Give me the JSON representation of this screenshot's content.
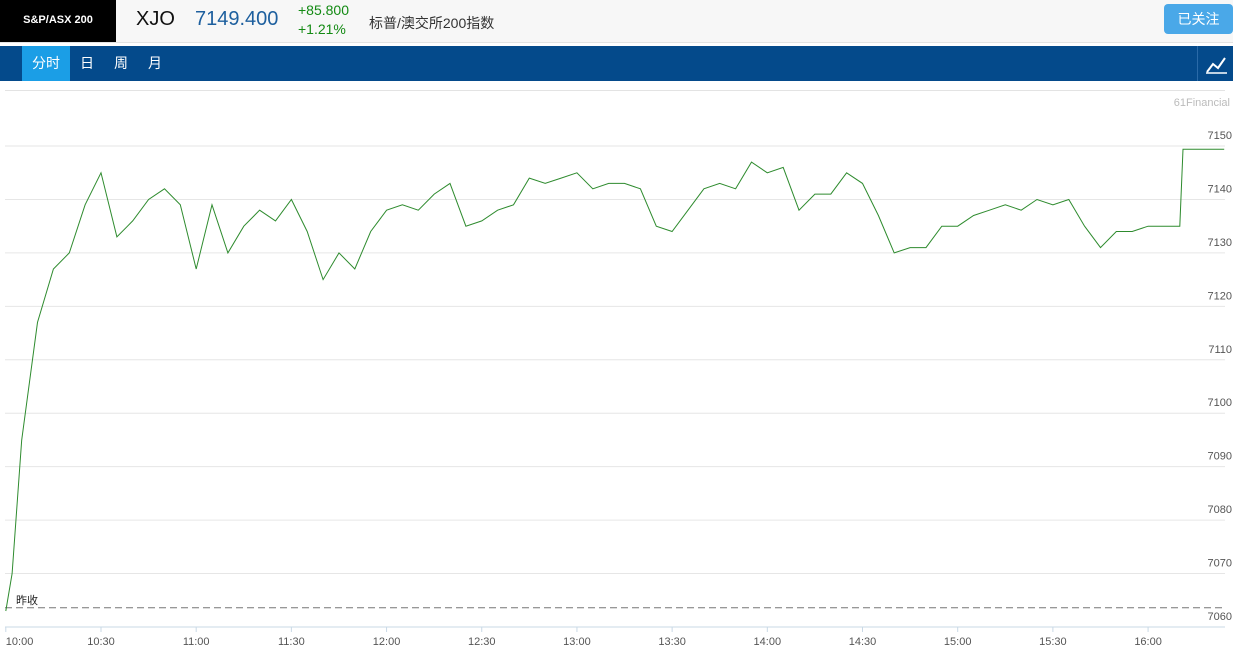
{
  "header": {
    "badge": "S&P/ASX 200",
    "symbol": "XJO",
    "price": "7149.400",
    "change": "+85.800",
    "change_pct": "+1.21%",
    "name": "标普/澳交所200指数",
    "follow_button": "已关注"
  },
  "tabs": [
    "分时",
    "日",
    "周",
    "月"
  ],
  "watermark": "61Financial",
  "chart_data": {
    "type": "line",
    "color": "#2e8b2e",
    "x": [
      "10:00",
      "10:02",
      "10:05",
      "10:10",
      "10:15",
      "10:20",
      "10:25",
      "10:30",
      "10:35",
      "10:40",
      "10:45",
      "10:50",
      "10:55",
      "11:00",
      "11:05",
      "11:10",
      "11:15",
      "11:20",
      "11:25",
      "11:30",
      "11:35",
      "11:40",
      "11:45",
      "11:50",
      "11:55",
      "12:00",
      "12:05",
      "12:10",
      "12:15",
      "12:20",
      "12:25",
      "12:30",
      "12:35",
      "12:40",
      "12:45",
      "12:50",
      "12:55",
      "13:00",
      "13:05",
      "13:10",
      "13:15",
      "13:20",
      "13:25",
      "13:30",
      "13:35",
      "13:40",
      "13:45",
      "13:50",
      "13:55",
      "14:00",
      "14:05",
      "14:10",
      "14:15",
      "14:20",
      "14:25",
      "14:30",
      "14:35",
      "14:40",
      "14:45",
      "14:50",
      "14:55",
      "15:00",
      "15:05",
      "15:10",
      "15:15",
      "15:20",
      "15:25",
      "15:30",
      "15:35",
      "15:40",
      "15:45",
      "15:50",
      "15:55",
      "16:00",
      "16:05",
      "16:10",
      "16:11",
      "16:24"
    ],
    "values": [
      7063,
      7070,
      7095,
      7117,
      7127,
      7130,
      7139,
      7145,
      7133,
      7136,
      7140,
      7142,
      7139,
      7127,
      7139,
      7130,
      7135,
      7138,
      7136,
      7140,
      7134,
      7125,
      7130,
      7127,
      7134,
      7138,
      7139,
      7138,
      7141,
      7143,
      7135,
      7136,
      7138,
      7139,
      7144,
      7143,
      7144,
      7145,
      7142,
      7143,
      7143,
      7142,
      7135,
      7134,
      7138,
      7142,
      7143,
      7142,
      7147,
      7145,
      7146,
      7138,
      7141,
      7141,
      7145,
      7143,
      7137,
      7130,
      7131,
      7131,
      7135,
      7135,
      7137,
      7138,
      7139,
      7138,
      7140,
      7139,
      7140,
      7135,
      7131,
      7134,
      7134,
      7135,
      7135,
      7135,
      7149.4,
      7149.4
    ],
    "xlim": [
      "10:00",
      "16:24"
    ],
    "xticks": [
      "10:00",
      "10:30",
      "11:00",
      "11:30",
      "12:00",
      "12:30",
      "13:00",
      "13:30",
      "14:00",
      "14:30",
      "15:00",
      "15:30",
      "16:00"
    ],
    "ylim": [
      7060,
      7160
    ],
    "yticks": [
      7060,
      7070,
      7080,
      7090,
      7100,
      7110,
      7120,
      7130,
      7140,
      7150
    ],
    "reference_line": {
      "label": "昨收",
      "value": 7063.6
    },
    "grid": true
  }
}
